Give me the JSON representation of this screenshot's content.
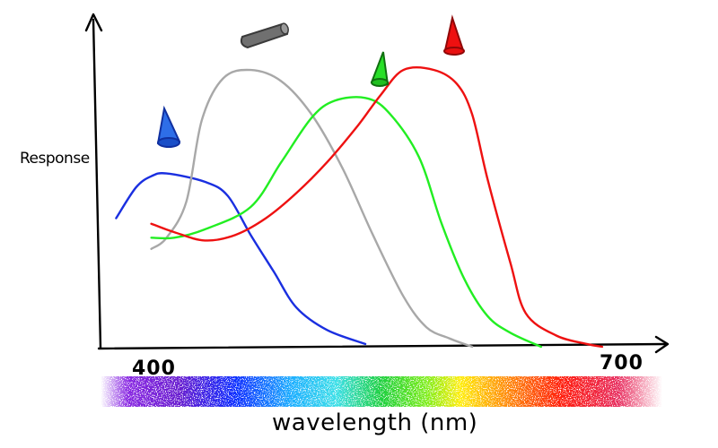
{
  "chart_data": {
    "type": "line",
    "title": "",
    "ylabel": "Response",
    "xlabel": "wavelength (nm)",
    "x_ticks": [
      "400",
      "700"
    ],
    "xlim": [
      380,
      730
    ],
    "ylim": [
      0,
      1.0
    ],
    "series": [
      {
        "icon": "blue-cone-icon",
        "color": "#1a2fe0",
        "points": [
          [
            382,
            0.46
          ],
          [
            395,
            0.57
          ],
          [
            405,
            0.61
          ],
          [
            415,
            0.62
          ],
          [
            440,
            0.59
          ],
          [
            455,
            0.54
          ],
          [
            470,
            0.4
          ],
          [
            485,
            0.27
          ],
          [
            500,
            0.14
          ],
          [
            520,
            0.06
          ],
          [
            545,
            0.01
          ]
        ]
      },
      {
        "icon": "rod-icon",
        "color": "#a8a8a8",
        "points": [
          [
            405,
            0.35
          ],
          [
            415,
            0.39
          ],
          [
            428,
            0.52
          ],
          [
            438,
            0.81
          ],
          [
            452,
            0.96
          ],
          [
            470,
            0.99
          ],
          [
            490,
            0.95
          ],
          [
            510,
            0.83
          ],
          [
            530,
            0.64
          ],
          [
            550,
            0.4
          ],
          [
            570,
            0.18
          ],
          [
            585,
            0.07
          ],
          [
            600,
            0.03
          ],
          [
            615,
            0.0
          ]
        ]
      },
      {
        "icon": "green-cone-icon",
        "color": "#22ee22",
        "points": [
          [
            405,
            0.39
          ],
          [
            420,
            0.39
          ],
          [
            440,
            0.42
          ],
          [
            470,
            0.5
          ],
          [
            490,
            0.66
          ],
          [
            510,
            0.82
          ],
          [
            525,
            0.88
          ],
          [
            545,
            0.89
          ],
          [
            560,
            0.84
          ],
          [
            580,
            0.68
          ],
          [
            595,
            0.44
          ],
          [
            610,
            0.24
          ],
          [
            625,
            0.11
          ],
          [
            640,
            0.05
          ],
          [
            660,
            0.0
          ]
        ]
      },
      {
        "icon": "red-cone-icon",
        "color": "#ee1111",
        "points": [
          [
            405,
            0.44
          ],
          [
            420,
            0.41
          ],
          [
            440,
            0.38
          ],
          [
            460,
            0.4
          ],
          [
            480,
            0.46
          ],
          [
            500,
            0.55
          ],
          [
            520,
            0.66
          ],
          [
            540,
            0.79
          ],
          [
            555,
            0.9
          ],
          [
            570,
            0.99
          ],
          [
            590,
            0.99
          ],
          [
            605,
            0.94
          ],
          [
            615,
            0.83
          ],
          [
            625,
            0.6
          ],
          [
            640,
            0.3
          ],
          [
            650,
            0.12
          ],
          [
            670,
            0.04
          ],
          [
            690,
            0.01
          ],
          [
            700,
            0.0
          ]
        ]
      }
    ],
    "spectrum_bar": true
  }
}
